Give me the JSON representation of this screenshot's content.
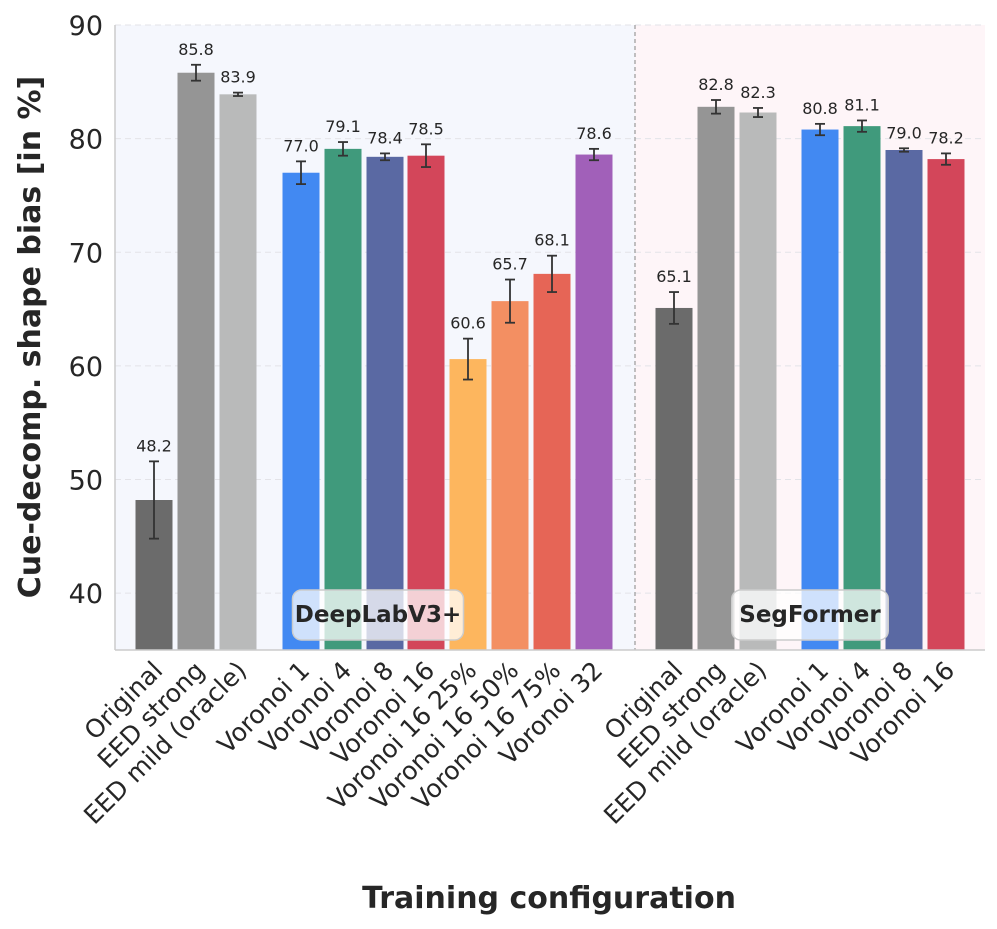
{
  "chart_data": {
    "type": "bar",
    "title": "",
    "xlabel": "Training configuration",
    "ylabel": "Cue-decomp. shape bias [in %]",
    "ylim": [
      35,
      90
    ],
    "yticks": [
      40,
      50,
      60,
      70,
      80,
      90
    ],
    "groups": [
      {
        "name": "DeepLabV3+",
        "bars": [
          {
            "label": "Original",
            "value": 48.2,
            "error": 3.4,
            "color": "#6b6b6b"
          },
          {
            "label": "EED strong",
            "value": 85.8,
            "error": 0.7,
            "color": "#959595"
          },
          {
            "label": "EED mild (oracle)",
            "value": 83.9,
            "error": 0.15,
            "color": "#b9baba"
          },
          {
            "label": "Voronoi 1",
            "value": 77.0,
            "error": 1.0,
            "color": "#4289f2"
          },
          {
            "label": "Voronoi 4",
            "value": 79.1,
            "error": 0.6,
            "color": "#409a7c"
          },
          {
            "label": "Voronoi 8",
            "value": 78.4,
            "error": 0.3,
            "color": "#5a69a3"
          },
          {
            "label": "Voronoi 16",
            "value": 78.5,
            "error": 1.0,
            "color": "#d3465a"
          },
          {
            "label": "Voronoi 16 25%",
            "value": 60.6,
            "error": 1.8,
            "color": "#fdb65e"
          },
          {
            "label": "Voronoi 16 50%",
            "value": 65.7,
            "error": 1.9,
            "color": "#f38f62"
          },
          {
            "label": "Voronoi 16 75%",
            "value": 68.1,
            "error": 1.6,
            "color": "#e66556"
          },
          {
            "label": "Voronoi 32",
            "value": 78.6,
            "error": 0.5,
            "color": "#a160b9"
          }
        ]
      },
      {
        "name": "SegFormer",
        "bars": [
          {
            "label": "Original",
            "value": 65.1,
            "error": 1.4,
            "color": "#6b6b6b"
          },
          {
            "label": "EED strong",
            "value": 82.8,
            "error": 0.6,
            "color": "#959595"
          },
          {
            "label": "EED mild (oracle)",
            "value": 82.3,
            "error": 0.4,
            "color": "#b9baba"
          },
          {
            "label": "Voronoi 1",
            "value": 80.8,
            "error": 0.5,
            "color": "#4289f2"
          },
          {
            "label": "Voronoi 4",
            "value": 81.1,
            "error": 0.5,
            "color": "#409a7c"
          },
          {
            "label": "Voronoi 8",
            "value": 79.0,
            "error": 0.15,
            "color": "#5a69a3"
          },
          {
            "label": "Voronoi 16",
            "value": 78.2,
            "error": 0.5,
            "color": "#d3465a"
          }
        ]
      }
    ],
    "grid": true,
    "group_backgrounds": [
      "#f5f7fd",
      "#fef5f8"
    ]
  }
}
